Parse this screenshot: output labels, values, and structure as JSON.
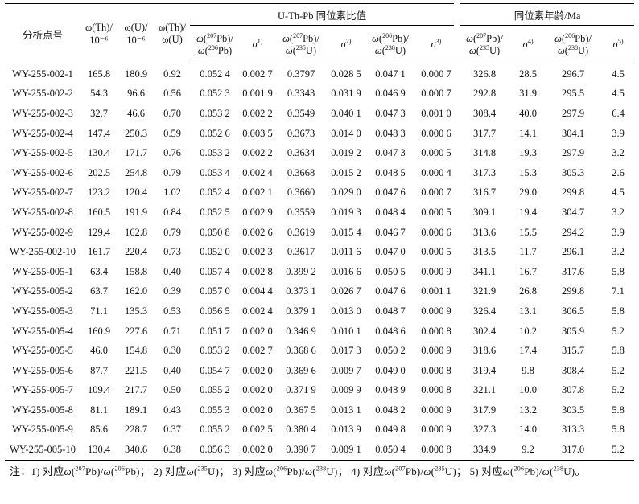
{
  "header": {
    "point_label": "分析点号",
    "th_label": "ω(Th)/",
    "u_label": "ω(U)/",
    "unit_label": "10⁻⁶",
    "thu_top": "ω(Th)/",
    "thu_bottom": "ω(U)",
    "group_ratio": "U-Th-Pb  同位素比值",
    "group_age": "同位素年龄/Ma",
    "sigma": "σ",
    "sup1": "1)",
    "sup2": "2)",
    "sup3": "3)",
    "sup4": "4)",
    "sup5": "5)"
  },
  "rows": [
    [
      "WY-255-002-1",
      "165.8",
      "180.9",
      "0.92",
      "0.052 4",
      "0.002 7",
      "0.3797",
      "0.028 5",
      "0.047 1",
      "0.000 7",
      "326.8",
      "28.5",
      "296.7",
      "4.5"
    ],
    [
      "WY-255-002-2",
      "54.3",
      "96.6",
      "0.56",
      "0.052 3",
      "0.001 9",
      "0.3343",
      "0.031 9",
      "0.046 9",
      "0.000 7",
      "292.8",
      "31.9",
      "295.5",
      "4.5"
    ],
    [
      "WY-255-002-3",
      "32.7",
      "46.6",
      "0.70",
      "0.053 2",
      "0.002 2",
      "0.3549",
      "0.040 1",
      "0.047 3",
      "0.001 0",
      "308.4",
      "40.0",
      "297.9",
      "6.4"
    ],
    [
      "WY-255-002-4",
      "147.4",
      "250.3",
      "0.59",
      "0.052 6",
      "0.003 5",
      "0.3673",
      "0.014 0",
      "0.048 3",
      "0.000 6",
      "317.7",
      "14.1",
      "304.1",
      "3.9"
    ],
    [
      "WY-255-002-5",
      "130.4",
      "171.7",
      "0.76",
      "0.053 2",
      "0.002 2",
      "0.3634",
      "0.019 2",
      "0.047 3",
      "0.000 5",
      "314.8",
      "19.3",
      "297.9",
      "3.2"
    ],
    [
      "WY-255-002-6",
      "202.5",
      "254.8",
      "0.79",
      "0.053 4",
      "0.002 4",
      "0.3668",
      "0.015 2",
      "0.048 5",
      "0.000 4",
      "317.3",
      "15.3",
      "305.3",
      "2.6"
    ],
    [
      "WY-255-002-7",
      "123.2",
      "120.4",
      "1.02",
      "0.052 4",
      "0.002 1",
      "0.3660",
      "0.029 0",
      "0.047 6",
      "0.000 7",
      "316.7",
      "29.0",
      "299.8",
      "4.5"
    ],
    [
      "WY-255-002-8",
      "160.5",
      "191.9",
      "0.84",
      "0.052 5",
      "0.002 9",
      "0.3559",
      "0.019 3",
      "0.048 4",
      "0.000 5",
      "309.1",
      "19.4",
      "304.7",
      "3.2"
    ],
    [
      "WY-255-002-9",
      "129.4",
      "162.8",
      "0.79",
      "0.050 8",
      "0.002 6",
      "0.3619",
      "0.015 4",
      "0.046 7",
      "0.000 6",
      "313.6",
      "15.5",
      "294.2",
      "3.9"
    ],
    [
      "WY-255-002-10",
      "161.7",
      "220.4",
      "0.73",
      "0.052 0",
      "0.002 3",
      "0.3617",
      "0.011 6",
      "0.047 0",
      "0.000 5",
      "313.5",
      "11.7",
      "296.1",
      "3.2"
    ],
    [
      "WY-255-005-1",
      "63.4",
      "158.8",
      "0.40",
      "0.057 4",
      "0.002 8",
      "0.399 2",
      "0.016 6",
      "0.050 5",
      "0.000 9",
      "341.1",
      "16.7",
      "317.6",
      "5.8"
    ],
    [
      "WY-255-005-2",
      "63.7",
      "162.0",
      "0.39",
      "0.057 0",
      "0.004 4",
      "0.373 1",
      "0.026 7",
      "0.047 6",
      "0.001 1",
      "321.9",
      "26.8",
      "299.8",
      "7.1"
    ],
    [
      "WY-255-005-3",
      "71.1",
      "135.3",
      "0.53",
      "0.056 5",
      "0.002 4",
      "0.379 1",
      "0.013 0",
      "0.048 7",
      "0.000 9",
      "326.4",
      "13.1",
      "306.5",
      "5.8"
    ],
    [
      "WY-255-005-4",
      "160.9",
      "227.6",
      "0.71",
      "0.051 7",
      "0.002 0",
      "0.346 9",
      "0.010 1",
      "0.048 6",
      "0.000 8",
      "302.4",
      "10.2",
      "305.9",
      "5.2"
    ],
    [
      "WY-255-005-5",
      "46.0",
      "154.8",
      "0.30",
      "0.053 2",
      "0.002 7",
      "0.368 6",
      "0.017 3",
      "0.050 2",
      "0.000 9",
      "318.6",
      "17.4",
      "315.7",
      "5.8"
    ],
    [
      "WY-255-005-6",
      "87.7",
      "221.5",
      "0.40",
      "0.054 7",
      "0.002 0",
      "0.369 6",
      "0.009 7",
      "0.049 0",
      "0.000 8",
      "319.4",
      "9.8",
      "308.4",
      "5.2"
    ],
    [
      "WY-255-005-7",
      "109.4",
      "217.7",
      "0.50",
      "0.055 2",
      "0.002 0",
      "0.371 9",
      "0.009 9",
      "0.048 9",
      "0.000 8",
      "321.1",
      "10.0",
      "307.8",
      "5.2"
    ],
    [
      "WY-255-005-8",
      "81.1",
      "189.1",
      "0.43",
      "0.055 3",
      "0.002 0",
      "0.367 5",
      "0.013 1",
      "0.048 2",
      "0.000 9",
      "317.9",
      "13.2",
      "303.5",
      "5.8"
    ],
    [
      "WY-255-005-9",
      "85.6",
      "228.7",
      "0.37",
      "0.055 2",
      "0.002 5",
      "0.380 4",
      "0.013 9",
      "0.049 8",
      "0.000 9",
      "327.3",
      "14.0",
      "313.3",
      "5.8"
    ],
    [
      "WY-255-005-10",
      "130.4",
      "340.6",
      "0.38",
      "0.056 3",
      "0.002 0",
      "0.390 7",
      "0.009 1",
      "0.050 4",
      "0.000 8",
      "334.9",
      "9.2",
      "317.0",
      "5.2"
    ]
  ],
  "note": {
    "prefix": "注：",
    "n1": "1)  对应",
    "n2": "；  2)  对应",
    "n3": "；  3)  对应",
    "n4": "；  4)  对应",
    "n5": "；  5)  对应",
    "end": "。"
  }
}
